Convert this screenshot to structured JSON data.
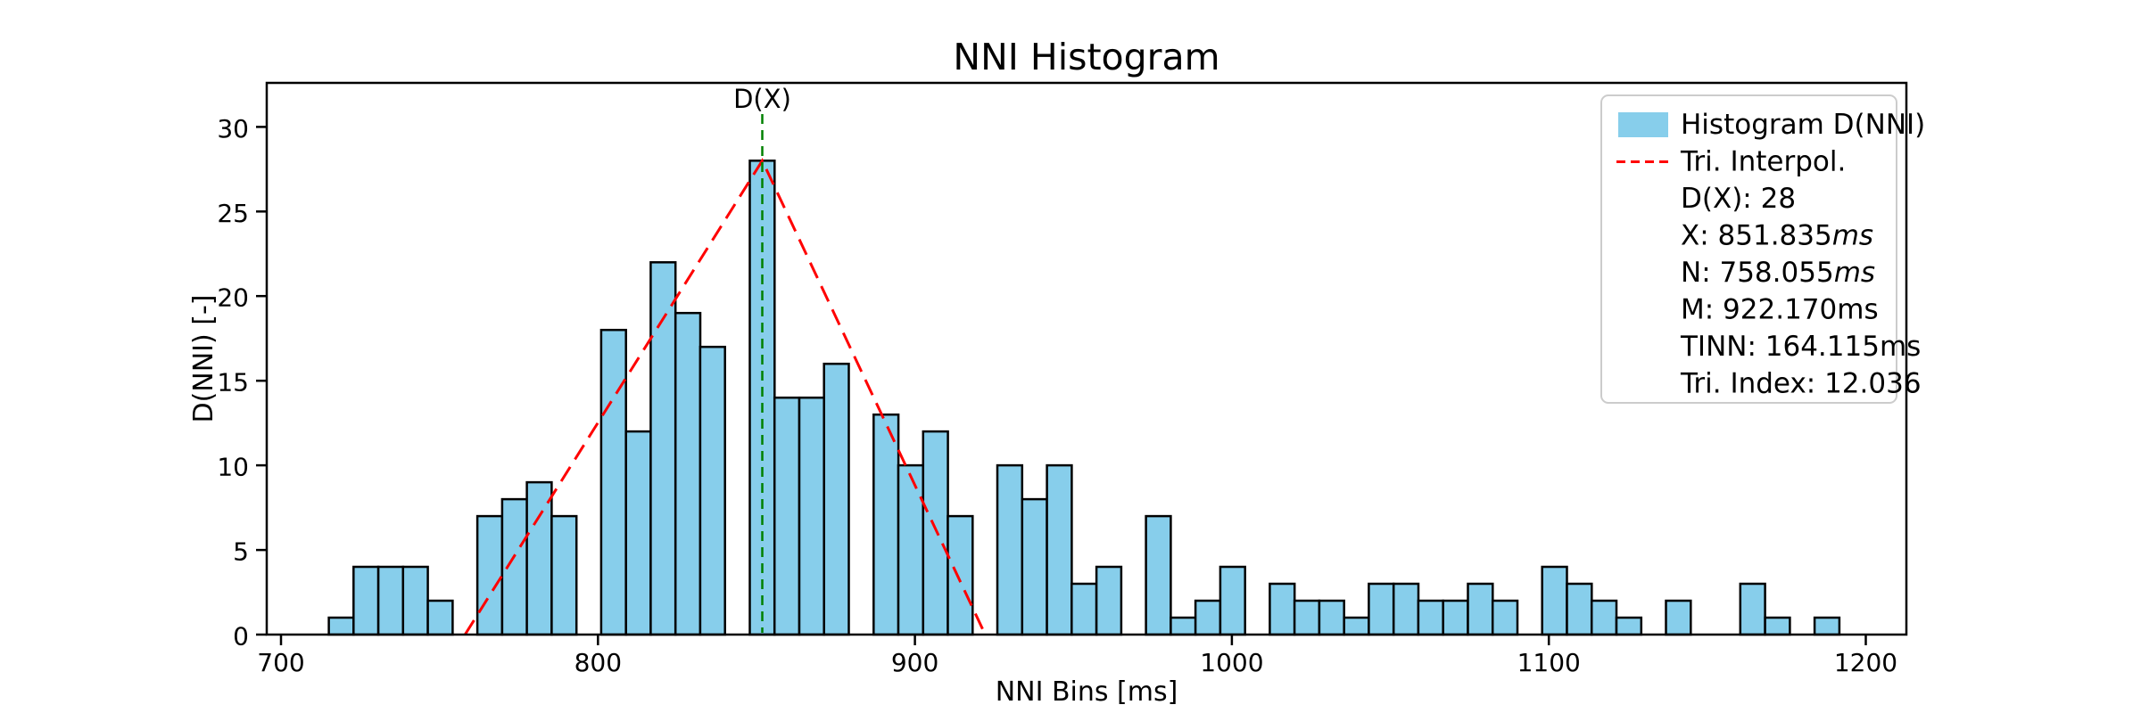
{
  "chart_data": {
    "type": "bar",
    "title": "NNI Histogram",
    "xlabel": "NNI Bins [ms]",
    "ylabel": "D(NNI) [-]",
    "bin_start_ms": 715.08,
    "bin_width_ms": 7.8125,
    "counts": [
      1,
      4,
      4,
      4,
      2,
      0,
      7,
      8,
      9,
      7,
      0,
      18,
      12,
      22,
      19,
      17,
      0,
      28,
      14,
      14,
      16,
      0,
      13,
      10,
      12,
      7,
      0,
      10,
      8,
      10,
      3,
      4,
      0,
      7,
      1,
      2,
      4,
      0,
      3,
      2,
      2,
      1,
      3,
      3,
      2,
      2,
      3,
      2,
      0,
      4,
      3,
      2,
      1,
      0,
      2,
      0,
      0,
      3,
      1,
      0,
      1
    ],
    "total_count": 337,
    "xticks": [
      700,
      800,
      900,
      1000,
      1100,
      1200
    ],
    "yticks": [
      0,
      5,
      10,
      15,
      20,
      25,
      30
    ],
    "xlim": [
      695.5,
      1212.8
    ],
    "ylim": [
      0,
      32.6
    ],
    "grid": false,
    "triangle": {
      "n_ms": 758.055,
      "x_ms": 851.835,
      "m_ms": 922.17,
      "peak": 28
    },
    "annotation": {
      "label": "D(X)",
      "x_ms": 851.835
    },
    "colors": {
      "bar_fill": "#87CEEB",
      "bar_edge": "#000000",
      "triangle_line": "#ff0000",
      "marker_line": "#008000",
      "legend_border": "#cccccc"
    },
    "legend": {
      "position": "upper right",
      "rows": [
        {
          "handle": "patch",
          "text": "Histogram D(NNI)",
          "unit": "",
          "unit_italic": false
        },
        {
          "handle": "dash",
          "text": "Tri. Interpol.",
          "unit": "",
          "unit_italic": false
        },
        {
          "handle": "none",
          "text": "D(X): 28",
          "unit": "",
          "unit_italic": false
        },
        {
          "handle": "none",
          "text": "X: 851.835",
          "unit": "ms",
          "unit_italic": true
        },
        {
          "handle": "none",
          "text": "N: 758.055",
          "unit": "ms",
          "unit_italic": true
        },
        {
          "handle": "none",
          "text": "M: 922.170",
          "unit": "ms",
          "unit_italic": false
        },
        {
          "handle": "none",
          "text": "TINN: 164.115",
          "unit": "ms",
          "unit_italic": false
        },
        {
          "handle": "none",
          "text": "Tri. Index: 12.036",
          "unit": "",
          "unit_italic": false
        }
      ]
    }
  }
}
